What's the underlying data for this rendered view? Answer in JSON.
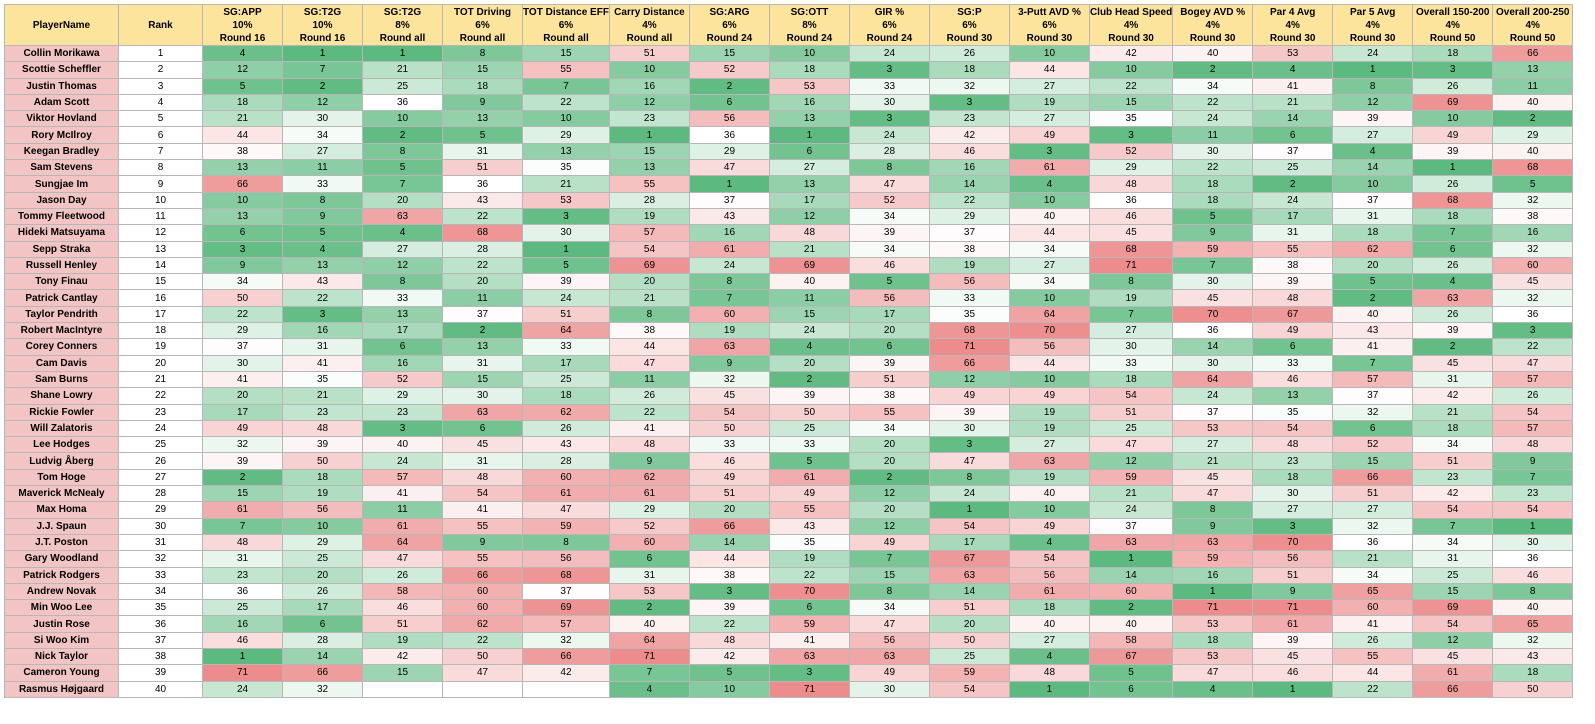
{
  "columns": [
    {
      "label": "PlayerName",
      "weight": "",
      "round": ""
    },
    {
      "label": "Rank",
      "weight": "",
      "round": ""
    },
    {
      "label": "SG:APP",
      "weight": "10%",
      "round": "Round 16"
    },
    {
      "label": "SG:T2G",
      "weight": "10%",
      "round": "Round 16"
    },
    {
      "label": "SG:T2G",
      "weight": "8%",
      "round": "Round all"
    },
    {
      "label": "TOT Driving",
      "weight": "6%",
      "round": "Round all"
    },
    {
      "label": "TOT Distance EFF",
      "weight": "6%",
      "round": "Round all"
    },
    {
      "label": "Carry Distance",
      "weight": "4%",
      "round": "Round all"
    },
    {
      "label": "SG:ARG",
      "weight": "6%",
      "round": "Round 24"
    },
    {
      "label": "SG:OTT",
      "weight": "8%",
      "round": "Round 24"
    },
    {
      "label": "GIR %",
      "weight": "6%",
      "round": "Round 24"
    },
    {
      "label": "SG:P",
      "weight": "6%",
      "round": "Round 30"
    },
    {
      "label": "3-Putt AVD %",
      "weight": "6%",
      "round": "Round 30"
    },
    {
      "label": "Club Head Speed",
      "weight": "4%",
      "round": "Round 30"
    },
    {
      "label": "Bogey AVD %",
      "weight": "4%",
      "round": "Round 30"
    },
    {
      "label": "Par 4 Avg",
      "weight": "4%",
      "round": "Round 30"
    },
    {
      "label": "Par 5 Avg",
      "weight": "4%",
      "round": "Round 30"
    },
    {
      "label": "Overall 150-200",
      "weight": "4%",
      "round": "Round 50"
    },
    {
      "label": "Overall 200-250",
      "weight": "4%",
      "round": "Round 50"
    }
  ],
  "colors": {
    "best": "#5cb97f",
    "neutral": "#ffffff",
    "worst": "#ec8c8c",
    "header": "#fde49c",
    "name_cell": "#f2c4c4"
  },
  "rows": [
    {
      "name": "Collin Morikawa",
      "rank": "1",
      "v": [
        "4",
        "1",
        "1",
        "8",
        "15",
        "51",
        "15",
        "10",
        "24",
        "26",
        "10",
        "42",
        "40",
        "53",
        "24",
        "18",
        "66"
      ]
    },
    {
      "name": "Scottie Scheffler",
      "rank": "2",
      "v": [
        "12",
        "7",
        "21",
        "15",
        "55",
        "10",
        "52",
        "18",
        "3",
        "18",
        "44",
        "10",
        "2",
        "4",
        "1",
        "3",
        "13"
      ]
    },
    {
      "name": "Justin Thomas",
      "rank": "3",
      "v": [
        "5",
        "2",
        "25",
        "18",
        "7",
        "16",
        "2",
        "53",
        "33",
        "32",
        "27",
        "22",
        "34",
        "41",
        "8",
        "26",
        "11"
      ]
    },
    {
      "name": "Adam Scott",
      "rank": "4",
      "v": [
        "18",
        "12",
        "36",
        "9",
        "22",
        "12",
        "6",
        "16",
        "30",
        "3",
        "19",
        "15",
        "22",
        "21",
        "12",
        "69",
        "40"
      ]
    },
    {
      "name": "Viktor Hovland",
      "rank": "5",
      "v": [
        "21",
        "30",
        "10",
        "13",
        "10",
        "23",
        "56",
        "13",
        "3",
        "23",
        "27",
        "35",
        "24",
        "14",
        "39",
        "10",
        "2"
      ]
    },
    {
      "name": "Rory McIlroy",
      "rank": "6",
      "v": [
        "44",
        "34",
        "2",
        "5",
        "29",
        "1",
        "36",
        "1",
        "24",
        "42",
        "49",
        "3",
        "11",
        "6",
        "27",
        "49",
        "29"
      ]
    },
    {
      "name": "Keegan Bradley",
      "rank": "7",
      "v": [
        "38",
        "27",
        "8",
        "31",
        "13",
        "15",
        "29",
        "6",
        "28",
        "46",
        "3",
        "52",
        "30",
        "37",
        "4",
        "39",
        "40"
      ]
    },
    {
      "name": "Sam Stevens",
      "rank": "8",
      "v": [
        "13",
        "11",
        "5",
        "51",
        "35",
        "13",
        "47",
        "27",
        "8",
        "16",
        "61",
        "29",
        "22",
        "25",
        "14",
        "1",
        "68"
      ]
    },
    {
      "name": "Sungjae Im",
      "rank": "9",
      "v": [
        "66",
        "33",
        "7",
        "36",
        "21",
        "55",
        "1",
        "13",
        "47",
        "14",
        "4",
        "48",
        "18",
        "2",
        "10",
        "26",
        "5"
      ]
    },
    {
      "name": "Jason Day",
      "rank": "10",
      "v": [
        "10",
        "8",
        "20",
        "43",
        "53",
        "28",
        "37",
        "17",
        "52",
        "22",
        "10",
        "36",
        "18",
        "24",
        "37",
        "68",
        "32"
      ]
    },
    {
      "name": "Tommy Fleetwood",
      "rank": "11",
      "v": [
        "13",
        "9",
        "63",
        "22",
        "3",
        "19",
        "43",
        "12",
        "34",
        "29",
        "40",
        "46",
        "5",
        "17",
        "31",
        "18",
        "38"
      ]
    },
    {
      "name": "Hideki Matsuyama",
      "rank": "12",
      "v": [
        "6",
        "5",
        "4",
        "68",
        "30",
        "57",
        "16",
        "48",
        "39",
        "37",
        "44",
        "45",
        "9",
        "31",
        "18",
        "7",
        "16"
      ]
    },
    {
      "name": "Sepp Straka",
      "rank": "13",
      "v": [
        "3",
        "4",
        "27",
        "28",
        "1",
        "54",
        "61",
        "21",
        "34",
        "38",
        "34",
        "68",
        "59",
        "55",
        "62",
        "6",
        "32"
      ]
    },
    {
      "name": "Russell Henley",
      "rank": "14",
      "v": [
        "9",
        "13",
        "12",
        "22",
        "5",
        "69",
        "24",
        "69",
        "46",
        "19",
        "27",
        "71",
        "7",
        "38",
        "20",
        "26",
        "60"
      ]
    },
    {
      "name": "Tony Finau",
      "rank": "15",
      "v": [
        "34",
        "43",
        "8",
        "20",
        "39",
        "20",
        "8",
        "40",
        "5",
        "56",
        "34",
        "8",
        "30",
        "39",
        "5",
        "4",
        "45"
      ]
    },
    {
      "name": "Patrick Cantlay",
      "rank": "16",
      "v": [
        "50",
        "22",
        "33",
        "11",
        "24",
        "21",
        "7",
        "11",
        "56",
        "33",
        "10",
        "19",
        "45",
        "48",
        "2",
        "63",
        "32"
      ]
    },
    {
      "name": "Taylor Pendrith",
      "rank": "17",
      "v": [
        "22",
        "3",
        "13",
        "37",
        "51",
        "8",
        "60",
        "15",
        "17",
        "35",
        "64",
        "7",
        "70",
        "67",
        "40",
        "26",
        "36"
      ]
    },
    {
      "name": "Robert MacIntyre",
      "rank": "18",
      "v": [
        "29",
        "16",
        "17",
        "2",
        "64",
        "38",
        "19",
        "24",
        "20",
        "68",
        "70",
        "27",
        "36",
        "49",
        "43",
        "39",
        "3"
      ]
    },
    {
      "name": "Corey Conners",
      "rank": "19",
      "v": [
        "37",
        "31",
        "6",
        "13",
        "33",
        "44",
        "63",
        "4",
        "6",
        "71",
        "56",
        "30",
        "14",
        "6",
        "41",
        "2",
        "22"
      ]
    },
    {
      "name": "Cam Davis",
      "rank": "20",
      "v": [
        "30",
        "41",
        "16",
        "31",
        "17",
        "47",
        "9",
        "20",
        "39",
        "66",
        "44",
        "33",
        "30",
        "33",
        "7",
        "45",
        "47"
      ]
    },
    {
      "name": "Sam Burns",
      "rank": "21",
      "v": [
        "41",
        "35",
        "52",
        "15",
        "25",
        "11",
        "32",
        "2",
        "51",
        "12",
        "10",
        "18",
        "64",
        "46",
        "57",
        "31",
        "57"
      ]
    },
    {
      "name": "Shane Lowry",
      "rank": "22",
      "v": [
        "20",
        "21",
        "29",
        "30",
        "18",
        "26",
        "45",
        "39",
        "38",
        "49",
        "49",
        "54",
        "24",
        "13",
        "37",
        "42",
        "26"
      ]
    },
    {
      "name": "Rickie Fowler",
      "rank": "23",
      "v": [
        "17",
        "23",
        "23",
        "63",
        "62",
        "22",
        "54",
        "50",
        "55",
        "39",
        "19",
        "51",
        "37",
        "35",
        "32",
        "21",
        "54"
      ]
    },
    {
      "name": "Will Zalatoris",
      "rank": "24",
      "v": [
        "49",
        "48",
        "3",
        "6",
        "26",
        "41",
        "50",
        "25",
        "34",
        "30",
        "19",
        "25",
        "53",
        "54",
        "6",
        "18",
        "57"
      ]
    },
    {
      "name": "Lee Hodges",
      "rank": "25",
      "v": [
        "32",
        "39",
        "40",
        "45",
        "43",
        "48",
        "33",
        "33",
        "20",
        "3",
        "27",
        "47",
        "27",
        "48",
        "52",
        "34",
        "48"
      ]
    },
    {
      "name": "Ludvig Åberg",
      "rank": "26",
      "v": [
        "39",
        "50",
        "24",
        "31",
        "28",
        "9",
        "46",
        "5",
        "20",
        "47",
        "63",
        "12",
        "21",
        "23",
        "15",
        "51",
        "9"
      ]
    },
    {
      "name": "Tom Hoge",
      "rank": "27",
      "v": [
        "2",
        "18",
        "57",
        "48",
        "60",
        "62",
        "49",
        "61",
        "2",
        "8",
        "19",
        "59",
        "45",
        "18",
        "66",
        "23",
        "7"
      ]
    },
    {
      "name": "Maverick McNealy",
      "rank": "28",
      "v": [
        "15",
        "19",
        "41",
        "54",
        "61",
        "61",
        "51",
        "49",
        "12",
        "24",
        "40",
        "21",
        "47",
        "30",
        "51",
        "42",
        "23"
      ]
    },
    {
      "name": "Max Homa",
      "rank": "29",
      "v": [
        "61",
        "56",
        "11",
        "41",
        "47",
        "29",
        "20",
        "55",
        "20",
        "1",
        "10",
        "24",
        "8",
        "27",
        "27",
        "54",
        "54"
      ]
    },
    {
      "name": "J.J. Spaun",
      "rank": "30",
      "v": [
        "7",
        "10",
        "61",
        "55",
        "59",
        "52",
        "66",
        "43",
        "12",
        "54",
        "49",
        "37",
        "9",
        "3",
        "32",
        "7",
        "1"
      ]
    },
    {
      "name": "J.T. Poston",
      "rank": "31",
      "v": [
        "48",
        "29",
        "64",
        "9",
        "8",
        "60",
        "14",
        "35",
        "49",
        "17",
        "4",
        "63",
        "63",
        "70",
        "36",
        "34",
        "30"
      ]
    },
    {
      "name": "Gary Woodland",
      "rank": "32",
      "v": [
        "31",
        "25",
        "47",
        "55",
        "56",
        "6",
        "44",
        "19",
        "7",
        "67",
        "54",
        "1",
        "59",
        "56",
        "21",
        "31",
        "36"
      ]
    },
    {
      "name": "Patrick Rodgers",
      "rank": "33",
      "v": [
        "23",
        "20",
        "26",
        "66",
        "68",
        "31",
        "38",
        "22",
        "15",
        "63",
        "56",
        "14",
        "16",
        "51",
        "34",
        "25",
        "46"
      ]
    },
    {
      "name": "Andrew Novak",
      "rank": "34",
      "v": [
        "36",
        "26",
        "58",
        "60",
        "37",
        "53",
        "3",
        "70",
        "8",
        "14",
        "61",
        "60",
        "1",
        "9",
        "65",
        "15",
        "8"
      ]
    },
    {
      "name": "Min Woo Lee",
      "rank": "35",
      "v": [
        "25",
        "17",
        "46",
        "60",
        "69",
        "2",
        "39",
        "6",
        "34",
        "51",
        "18",
        "2",
        "71",
        "71",
        "60",
        "69",
        "40"
      ]
    },
    {
      "name": "Justin Rose",
      "rank": "36",
      "v": [
        "16",
        "6",
        "51",
        "62",
        "57",
        "40",
        "22",
        "59",
        "47",
        "20",
        "40",
        "40",
        "53",
        "61",
        "41",
        "54",
        "65"
      ]
    },
    {
      "name": "Si Woo Kim",
      "rank": "37",
      "v": [
        "46",
        "28",
        "19",
        "22",
        "32",
        "64",
        "48",
        "41",
        "56",
        "50",
        "27",
        "58",
        "18",
        "39",
        "26",
        "12",
        "32"
      ]
    },
    {
      "name": "Nick Taylor",
      "rank": "38",
      "v": [
        "1",
        "14",
        "42",
        "50",
        "66",
        "71",
        "42",
        "63",
        "63",
        "25",
        "4",
        "67",
        "53",
        "45",
        "55",
        "45",
        "43"
      ]
    },
    {
      "name": "Cameron Young",
      "rank": "39",
      "v": [
        "71",
        "66",
        "15",
        "47",
        "42",
        "7",
        "5",
        "3",
        "49",
        "59",
        "48",
        "5",
        "47",
        "46",
        "44",
        "61",
        "18"
      ]
    },
    {
      "name": "Rasmus Højgaard",
      "rank": "40",
      "v": [
        "24",
        "32",
        "",
        "",
        "",
        "4",
        "10",
        "71",
        "30",
        "54",
        "1",
        "6",
        "4",
        "1",
        "22",
        "66",
        "50"
      ]
    }
  ]
}
